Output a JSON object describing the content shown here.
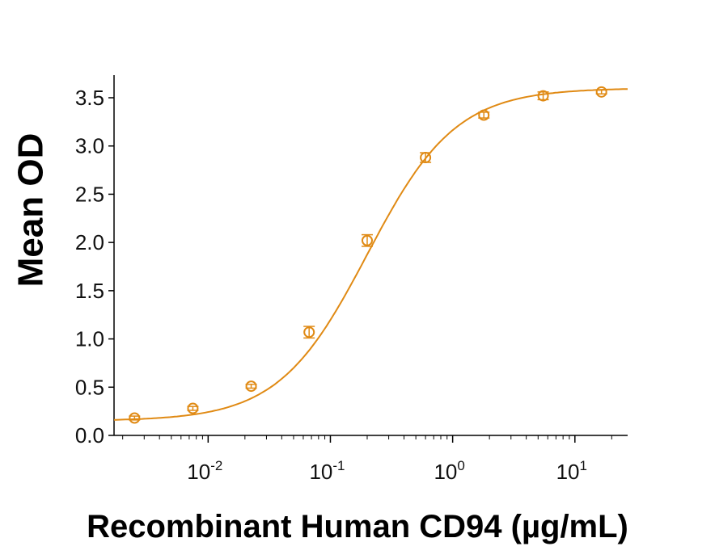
{
  "chart_data": {
    "type": "line",
    "title": "",
    "xlabel": "Recombinant Human CD94 (µg/mL)",
    "ylabel": "Mean OD",
    "x_scale": "log",
    "xlim": [
      0.0017,
      27
    ],
    "ylim": [
      0.0,
      3.6
    ],
    "y_ticks": [
      "0.0",
      "0.5",
      "1.0",
      "1.5",
      "2.0",
      "2.5",
      "3.0",
      "3.5"
    ],
    "x_ticks": [
      {
        "value": 0.01,
        "base": "10",
        "exp": "-2"
      },
      {
        "value": 0.1,
        "base": "10",
        "exp": "-1"
      },
      {
        "value": 1,
        "base": "10",
        "exp": "0"
      },
      {
        "value": 10,
        "base": "10",
        "exp": "1"
      }
    ],
    "grid": false,
    "legend": "none",
    "color": "#e08a14",
    "series": [
      {
        "x": [
          0.0025,
          0.0075,
          0.0225,
          0.067,
          0.2,
          0.6,
          1.8,
          5.5,
          16.5
        ],
        "y": [
          0.18,
          0.28,
          0.51,
          1.07,
          2.02,
          2.88,
          3.32,
          3.52,
          3.56
        ],
        "err": [
          0.02,
          0.02,
          0.02,
          0.06,
          0.06,
          0.05,
          0.03,
          0.04,
          0.02
        ]
      }
    ],
    "fit": {
      "model": "4PL",
      "bottom": 0.15,
      "top": 3.6,
      "ec50": 0.2,
      "hill": 1.2
    }
  }
}
